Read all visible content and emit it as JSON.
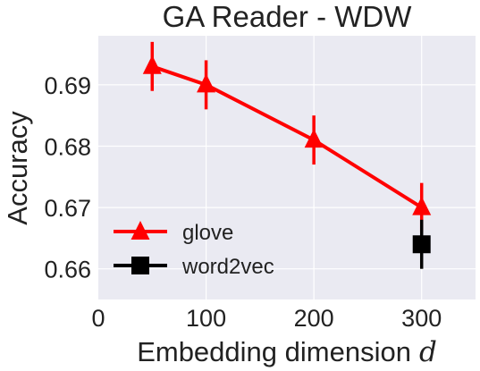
{
  "chart_data": {
    "type": "line",
    "title": "GA Reader - WDW",
    "xlabel": "Embedding dimension",
    "xlabel_var": "d",
    "ylabel": "Accuracy",
    "xlim": [
      0,
      350
    ],
    "ylim": [
      0.655,
      0.698
    ],
    "xticks": [
      0,
      100,
      200,
      300
    ],
    "yticks": [
      0.66,
      0.67,
      0.68,
      0.69
    ],
    "ytick_labels": [
      "0.66",
      "0.67",
      "0.68",
      "0.69"
    ],
    "grid": true,
    "legend_position": "bottom-left",
    "series": [
      {
        "name": "glove",
        "color": "#ff0000",
        "marker": "triangle",
        "x": [
          50,
          100,
          200,
          300
        ],
        "y": [
          0.693,
          0.69,
          0.681,
          0.67
        ],
        "err": [
          0.004,
          0.004,
          0.004,
          0.004
        ]
      },
      {
        "name": "word2vec",
        "color": "#000000",
        "marker": "square",
        "x": [
          300
        ],
        "y": [
          0.664
        ],
        "err": [
          0.004
        ]
      }
    ]
  }
}
